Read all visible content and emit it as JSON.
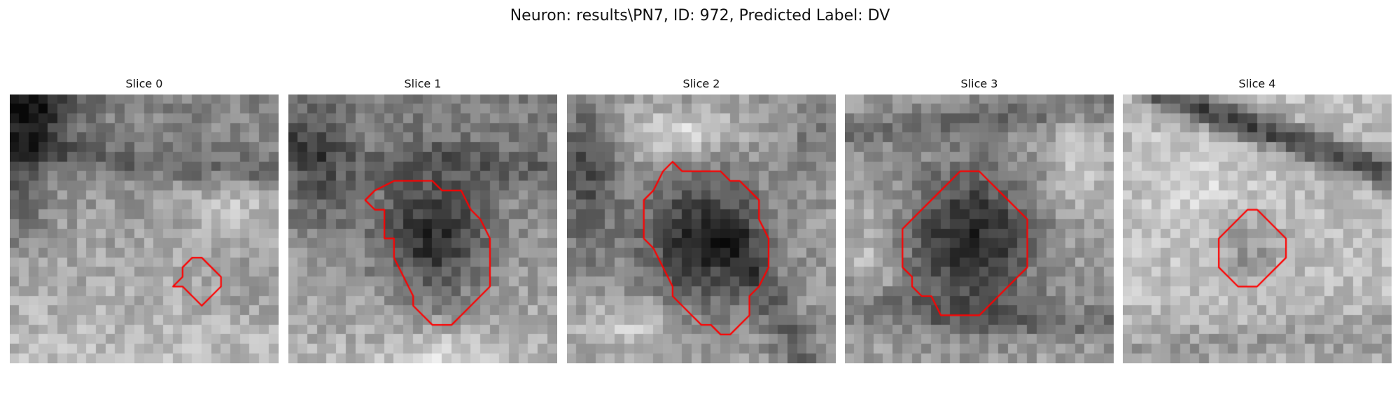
{
  "figure": {
    "title": "Neuron: results\\PN7, ID: 972, Predicted Label: DV"
  },
  "slices": [
    {
      "label": "Slice 0",
      "contour": [
        [
          19,
          17
        ],
        [
          20,
          17
        ],
        [
          21,
          18
        ],
        [
          22,
          19
        ],
        [
          22,
          20
        ],
        [
          21,
          21
        ],
        [
          20,
          22
        ],
        [
          19,
          21
        ],
        [
          18,
          20
        ],
        [
          17,
          20
        ],
        [
          18,
          19
        ],
        [
          18,
          18
        ]
      ]
    },
    {
      "label": "Slice 1",
      "contour": [
        [
          8,
          11
        ],
        [
          9,
          10
        ],
        [
          11,
          9
        ],
        [
          15,
          9
        ],
        [
          16,
          10
        ],
        [
          18,
          10
        ],
        [
          19,
          12
        ],
        [
          20,
          13
        ],
        [
          21,
          15
        ],
        [
          21,
          17
        ],
        [
          21,
          20
        ],
        [
          20,
          21
        ],
        [
          19,
          22
        ],
        [
          18,
          23
        ],
        [
          17,
          24
        ],
        [
          15,
          24
        ],
        [
          14,
          23
        ],
        [
          13,
          22
        ],
        [
          13,
          21
        ],
        [
          12,
          19
        ],
        [
          11,
          17
        ],
        [
          11,
          15
        ],
        [
          10,
          15
        ],
        [
          10,
          12
        ],
        [
          9,
          12
        ]
      ]
    },
    {
      "label": "Slice 2",
      "contour": [
        [
          8,
          11
        ],
        [
          9,
          10
        ],
        [
          10,
          8
        ],
        [
          11,
          7
        ],
        [
          12,
          8
        ],
        [
          16,
          8
        ],
        [
          17,
          9
        ],
        [
          18,
          9
        ],
        [
          19,
          10
        ],
        [
          20,
          11
        ],
        [
          20,
          13
        ],
        [
          21,
          15
        ],
        [
          21,
          18
        ],
        [
          20,
          20
        ],
        [
          19,
          21
        ],
        [
          19,
          23
        ],
        [
          17,
          25
        ],
        [
          16,
          25
        ],
        [
          15,
          24
        ],
        [
          14,
          24
        ],
        [
          13,
          23
        ],
        [
          12,
          22
        ],
        [
          11,
          21
        ],
        [
          11,
          20
        ],
        [
          10,
          18
        ],
        [
          9,
          16
        ],
        [
          8,
          15
        ],
        [
          8,
          12
        ]
      ]
    },
    {
      "label": "Slice 3",
      "contour": [
        [
          12,
          8
        ],
        [
          14,
          8
        ],
        [
          15,
          9
        ],
        [
          16,
          10
        ],
        [
          17,
          11
        ],
        [
          18,
          12
        ],
        [
          19,
          13
        ],
        [
          19,
          16
        ],
        [
          19,
          18
        ],
        [
          18,
          19
        ],
        [
          17,
          20
        ],
        [
          16,
          21
        ],
        [
          15,
          22
        ],
        [
          14,
          23
        ],
        [
          10,
          23
        ],
        [
          9,
          21
        ],
        [
          8,
          21
        ],
        [
          7,
          20
        ],
        [
          7,
          19
        ],
        [
          6,
          18
        ],
        [
          6,
          16
        ],
        [
          6,
          14
        ],
        [
          7,
          13
        ],
        [
          8,
          12
        ],
        [
          9,
          11
        ],
        [
          10,
          10
        ],
        [
          11,
          9
        ]
      ]
    },
    {
      "label": "Slice 4",
      "contour": [
        [
          12,
          13
        ],
        [
          13,
          12
        ],
        [
          14,
          12
        ],
        [
          15,
          13
        ],
        [
          16,
          14
        ],
        [
          17,
          15
        ],
        [
          17,
          17
        ],
        [
          16,
          18
        ],
        [
          15,
          19
        ],
        [
          14,
          20
        ],
        [
          12,
          20
        ],
        [
          11,
          19
        ],
        [
          10,
          18
        ],
        [
          10,
          15
        ],
        [
          11,
          14
        ]
      ]
    }
  ]
}
